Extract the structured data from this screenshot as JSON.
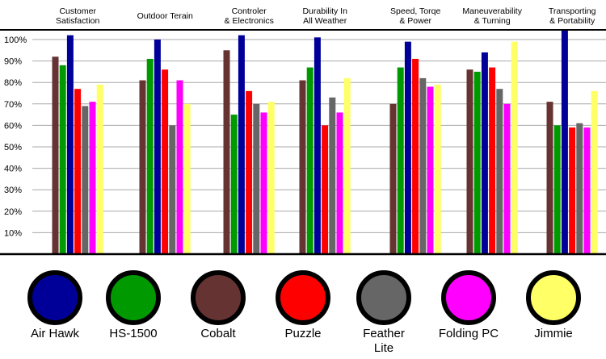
{
  "chart_data": {
    "type": "bar",
    "title": "",
    "xlabel": "",
    "ylabel": "",
    "ylim": [
      0,
      100
    ],
    "yticks": [
      "10%",
      "20%",
      "30%",
      "40%",
      "50%",
      "60%",
      "70%",
      "80%",
      "90%",
      "100%"
    ],
    "grid": true,
    "legend_position": "bottom",
    "categories": [
      [
        "Customer",
        "Satisfaction"
      ],
      [
        "Outdoor Terain"
      ],
      [
        "Controler",
        "& Electronics"
      ],
      [
        "Durability In",
        "All Weather"
      ],
      [
        "Speed, Torqe",
        "& Power"
      ],
      [
        "Maneuverability",
        "& Turning"
      ],
      [
        "Transporting",
        "& Portability"
      ]
    ],
    "series": [
      {
        "name": "Cobalt",
        "color": "#663333",
        "values": [
          92,
          81,
          95,
          81,
          70,
          86,
          71
        ]
      },
      {
        "name": "HS-1500",
        "color": "#009900",
        "values": [
          88,
          91,
          65,
          87,
          87,
          85,
          60
        ]
      },
      {
        "name": "Air Hawk",
        "color": "#000099",
        "values": [
          102,
          100,
          102,
          101,
          99,
          94,
          105
        ]
      },
      {
        "name": "Puzzle",
        "color": "#ff0000",
        "values": [
          77,
          86,
          76,
          60,
          91,
          87,
          59
        ]
      },
      {
        "name": "Feather Lite",
        "color": "#666666",
        "values": [
          69,
          60,
          70,
          73,
          82,
          77,
          61
        ]
      },
      {
        "name": "Folding PC",
        "color": "#ff00ff",
        "values": [
          71,
          81,
          66,
          66,
          78,
          70,
          59
        ]
      },
      {
        "name": "Jimmie",
        "color": "#ffff66",
        "values": [
          79,
          70,
          71,
          82,
          79,
          99,
          76
        ]
      }
    ],
    "legend": [
      {
        "name": "Air Hawk",
        "lines": [
          "Air Hawk"
        ],
        "color": "#000099"
      },
      {
        "name": "HS-1500",
        "lines": [
          "HS-1500"
        ],
        "color": "#009900"
      },
      {
        "name": "Cobalt",
        "lines": [
          "Cobalt"
        ],
        "color": "#663333"
      },
      {
        "name": "Puzzle",
        "lines": [
          "Puzzle"
        ],
        "color": "#ff0000"
      },
      {
        "name": "Feather Lite",
        "lines": [
          "Feather",
          "Lite"
        ],
        "color": "#666666"
      },
      {
        "name": "Folding PC",
        "lines": [
          "Folding PC"
        ],
        "color": "#ff00ff"
      },
      {
        "name": "Jimmie",
        "lines": [
          "Jimmie"
        ],
        "color": "#ffff66"
      }
    ]
  }
}
